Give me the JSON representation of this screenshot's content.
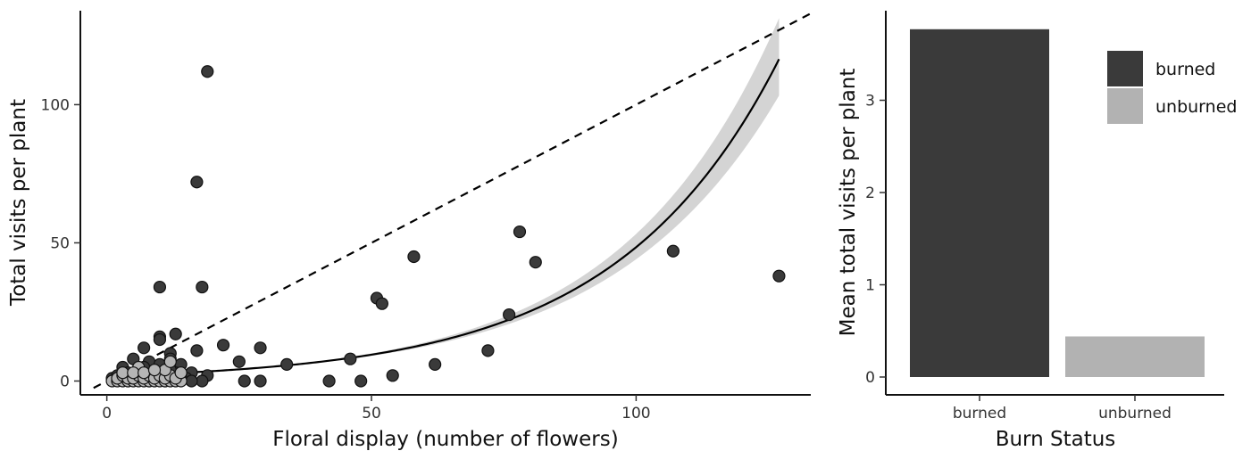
{
  "chart_data": [
    {
      "type": "scatter",
      "xlabel": "Floral display (number of flowers)",
      "ylabel": "Total visits per plant",
      "xlim": [
        -5,
        133
      ],
      "ylim": [
        -5,
        134
      ],
      "x_ticks": [
        0,
        50,
        100
      ],
      "y_ticks": [
        0,
        50,
        100
      ],
      "grid": false,
      "colors": {
        "burned": "#3a3a3a",
        "unburned": "#b5b5b5",
        "band": "#d4d4d4"
      },
      "reference_line": {
        "style": "dashed",
        "slope": 1,
        "intercept": 0,
        "from_x": -2.5
      },
      "fit_curve": {
        "intercept": 0.63,
        "slope": 0.0325,
        "band_halfwidth": 0.12
      },
      "series": [
        {
          "group": "burned",
          "points": [
            [
              19,
              112
            ],
            [
              17,
              72
            ],
            [
              10,
              34
            ],
            [
              18,
              34
            ],
            [
              78,
              54
            ],
            [
              58,
              45
            ],
            [
              81,
              43
            ],
            [
              107,
              47
            ],
            [
              127,
              38
            ],
            [
              51,
              30
            ],
            [
              52,
              28
            ],
            [
              76,
              24
            ],
            [
              10,
              16
            ],
            [
              13,
              17
            ],
            [
              7,
              12
            ],
            [
              10,
              15
            ],
            [
              17,
              11
            ],
            [
              22,
              13
            ],
            [
              29,
              12
            ],
            [
              72,
              11
            ],
            [
              25,
              7
            ],
            [
              34,
              6
            ],
            [
              46,
              8
            ],
            [
              62,
              6
            ],
            [
              54,
              2
            ],
            [
              5,
              8
            ],
            [
              8,
              7
            ],
            [
              14,
              6
            ],
            [
              12,
              10
            ],
            [
              16,
              3
            ],
            [
              19,
              2
            ],
            [
              26,
              0
            ],
            [
              29,
              0
            ],
            [
              42,
              0
            ],
            [
              48,
              0
            ],
            [
              3,
              5
            ],
            [
              4,
              3
            ],
            [
              6,
              4
            ],
            [
              9,
              3
            ],
            [
              11,
              2
            ],
            [
              13,
              3
            ],
            [
              15,
              1
            ],
            [
              18,
              0
            ],
            [
              1,
              1
            ],
            [
              2,
              2
            ],
            [
              4,
              0
            ],
            [
              6,
              1
            ],
            [
              8,
              0
            ],
            [
              9,
              1
            ],
            [
              11,
              0
            ],
            [
              12,
              4
            ],
            [
              14,
              1
            ],
            [
              16,
              0
            ],
            [
              5,
              2
            ],
            [
              7,
              5
            ],
            [
              10,
              6
            ],
            [
              12,
              8
            ]
          ]
        },
        {
          "group": "unburned",
          "points": [
            [
              1,
              0
            ],
            [
              2,
              0
            ],
            [
              3,
              0
            ],
            [
              4,
              0
            ],
            [
              5,
              0
            ],
            [
              6,
              0
            ],
            [
              7,
              0
            ],
            [
              8,
              0
            ],
            [
              9,
              0
            ],
            [
              10,
              0
            ],
            [
              11,
              0
            ],
            [
              12,
              0
            ],
            [
              13,
              0
            ],
            [
              14,
              0
            ],
            [
              2,
              1
            ],
            [
              3,
              2
            ],
            [
              4,
              1
            ],
            [
              5,
              1
            ],
            [
              6,
              2
            ],
            [
              7,
              1
            ],
            [
              8,
              2
            ],
            [
              9,
              1
            ],
            [
              10,
              2
            ],
            [
              11,
              1
            ],
            [
              12,
              2
            ],
            [
              13,
              1
            ],
            [
              14,
              3
            ],
            [
              6,
              5
            ],
            [
              11,
              4
            ],
            [
              12,
              7
            ],
            [
              3,
              3
            ],
            [
              5,
              3
            ],
            [
              7,
              3
            ],
            [
              9,
              4
            ]
          ]
        }
      ]
    },
    {
      "type": "bar",
      "xlabel": "Burn Status",
      "ylabel": "Mean total visits per plant",
      "categories": [
        "burned",
        "unburned"
      ],
      "values": [
        3.77,
        0.44
      ],
      "colors": [
        "#3a3a3a",
        "#b2b2b2"
      ],
      "ylim": [
        0,
        3.8
      ],
      "y_ticks": [
        0,
        1,
        2,
        3
      ],
      "grid": false,
      "legend": {
        "placement": "top-right",
        "entries": [
          {
            "label": "burned",
            "color": "#3a3a3a"
          },
          {
            "label": "unburned",
            "color": "#b2b2b2"
          }
        ]
      }
    }
  ]
}
